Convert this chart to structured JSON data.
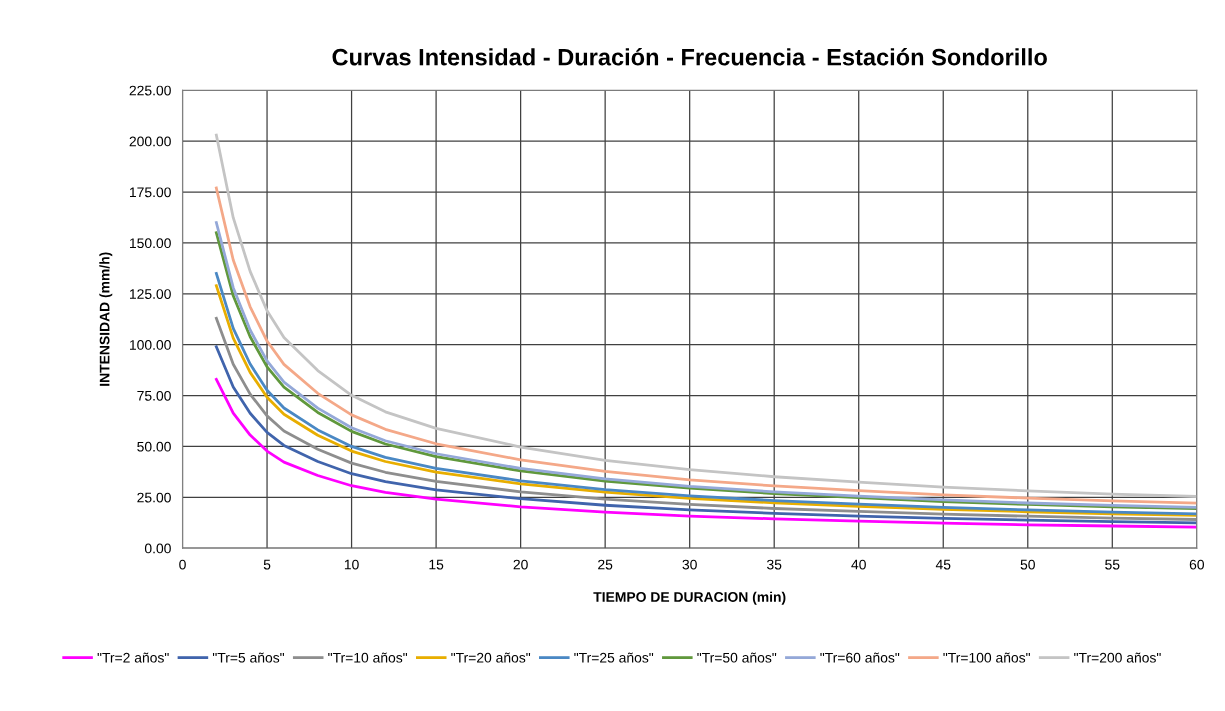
{
  "chart_data": {
    "type": "line",
    "title": "Curvas Intensidad - Duración - Frecuencia - Estación Sondorillo",
    "xlabel": "TIEMPO DE DURACION (min)",
    "ylabel": "INTENSIDAD (mm/h)",
    "x": [
      2,
      3,
      4,
      5,
      6,
      8,
      10,
      12,
      15,
      20,
      25,
      30,
      35,
      40,
      45,
      50,
      55,
      60
    ],
    "series": [
      {
        "name": "\"Tr=2 años\"",
        "color": "#ff00ff",
        "values": [
          83,
          66.4,
          55.6,
          47.7,
          42.3,
          35.7,
          30.7,
          27.4,
          24.1,
          20.3,
          17.7,
          15.8,
          14.4,
          13.3,
          12.3,
          11.5,
          10.9,
          10.4
        ]
      },
      {
        "name": "\"Tr=5 años\"",
        "color": "#4064ac",
        "values": [
          99,
          79.2,
          66.3,
          56.9,
          50.5,
          42.6,
          36.6,
          32.7,
          28.7,
          24.3,
          21.1,
          18.8,
          17.1,
          15.8,
          14.7,
          13.8,
          13.0,
          12.4
        ]
      },
      {
        "name": "\"Tr=10 años\"",
        "color": "#8e8e8e",
        "values": [
          113,
          90.4,
          75.7,
          65.0,
          57.6,
          48.6,
          41.8,
          37.3,
          32.8,
          27.7,
          24.1,
          21.5,
          19.5,
          18.1,
          16.7,
          15.7,
          14.8,
          14.1
        ]
      },
      {
        "name": "\"Tr=20 años\"",
        "color": "#e8ae00",
        "values": [
          129,
          103.2,
          86.4,
          74.2,
          65.8,
          55.5,
          47.7,
          42.6,
          37.4,
          31.6,
          27.5,
          24.5,
          22.3,
          20.6,
          19.1,
          17.9,
          16.9,
          16.1
        ]
      },
      {
        "name": "\"Tr=25 años\"",
        "color": "#4a88c4",
        "values": [
          135,
          108,
          90.5,
          77.6,
          68.9,
          58.1,
          50.0,
          44.6,
          39.2,
          33.1,
          28.8,
          25.7,
          23.4,
          21.6,
          20.0,
          18.8,
          17.7,
          16.9
        ]
      },
      {
        "name": "\"Tr=50 años\"",
        "color": "#60983c",
        "values": [
          155,
          124,
          103.9,
          89.1,
          79.1,
          66.7,
          57.4,
          51.2,
          45.0,
          38.0,
          33.0,
          29.5,
          26.8,
          24.8,
          22.9,
          21.5,
          20.3,
          19.4
        ]
      },
      {
        "name": "\"Tr=60 años\"",
        "color": "#94a8d8",
        "values": [
          160,
          128,
          107.2,
          92,
          81.6,
          68.8,
          59.2,
          52.8,
          46.4,
          39.2,
          34.1,
          30.4,
          27.7,
          25.6,
          23.7,
          22.2,
          21.0,
          20.0
        ]
      },
      {
        "name": "\"Tr=100 años\"",
        "color": "#f4a888",
        "values": [
          177,
          141.6,
          118.6,
          101.8,
          90.3,
          76.1,
          65.5,
          58.4,
          51.3,
          43.4,
          37.7,
          33.6,
          30.6,
          28.3,
          26.2,
          24.6,
          23.2,
          22.1
        ]
      },
      {
        "name": "\"Tr=200 años\"",
        "color": "#c4c4c4",
        "values": [
          203,
          162.4,
          136,
          116.7,
          103.5,
          87.3,
          75.1,
          67,
          58.9,
          49.7,
          43.2,
          38.6,
          35.1,
          32.5,
          30,
          28.2,
          26.6,
          25.4
        ]
      }
    ],
    "xlim": [
      0,
      60
    ],
    "xticks": [
      0,
      5,
      10,
      15,
      20,
      25,
      30,
      35,
      40,
      45,
      50,
      55,
      60
    ],
    "ylim": [
      0,
      225
    ],
    "yticks": [
      {
        "value": 0,
        "label": "0.00"
      },
      {
        "value": 25,
        "label": "25.00"
      },
      {
        "value": 50,
        "label": "50.00"
      },
      {
        "value": 75,
        "label": "75.00"
      },
      {
        "value": 100,
        "label": "100.00"
      },
      {
        "value": 125,
        "label": "125.00"
      },
      {
        "value": 150,
        "label": "150.00"
      },
      {
        "value": 175,
        "label": "175.00"
      },
      {
        "value": 200,
        "label": "200.00"
      },
      {
        "value": 225,
        "label": "225.00"
      }
    ],
    "grid": true,
    "legend": "bottom",
    "marker": "none",
    "line_style": "solid"
  }
}
